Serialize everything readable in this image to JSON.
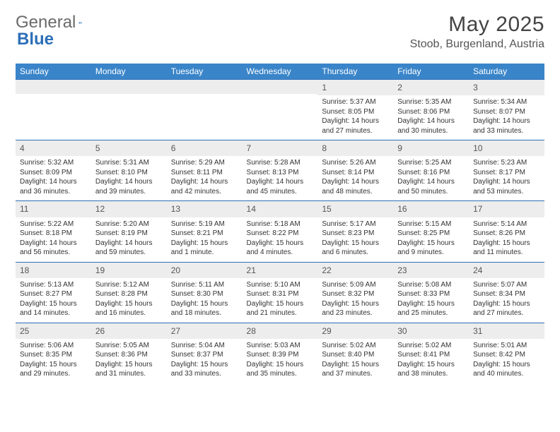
{
  "logo": {
    "text1": "General",
    "text2": "Blue"
  },
  "title": "May 2025",
  "location": "Stoob, Burgenland, Austria",
  "daynames": [
    "Sunday",
    "Monday",
    "Tuesday",
    "Wednesday",
    "Thursday",
    "Friday",
    "Saturday"
  ],
  "colors": {
    "header_bg": "#3a85c9",
    "daynum_bg": "#ededed",
    "border": "#2d6fb8",
    "text": "#333333"
  },
  "first_weekday": 4,
  "days": [
    {
      "n": 1,
      "sunrise": "5:37 AM",
      "sunset": "8:05 PM",
      "daylight": "14 hours and 27 minutes."
    },
    {
      "n": 2,
      "sunrise": "5:35 AM",
      "sunset": "8:06 PM",
      "daylight": "14 hours and 30 minutes."
    },
    {
      "n": 3,
      "sunrise": "5:34 AM",
      "sunset": "8:07 PM",
      "daylight": "14 hours and 33 minutes."
    },
    {
      "n": 4,
      "sunrise": "5:32 AM",
      "sunset": "8:09 PM",
      "daylight": "14 hours and 36 minutes."
    },
    {
      "n": 5,
      "sunrise": "5:31 AM",
      "sunset": "8:10 PM",
      "daylight": "14 hours and 39 minutes."
    },
    {
      "n": 6,
      "sunrise": "5:29 AM",
      "sunset": "8:11 PM",
      "daylight": "14 hours and 42 minutes."
    },
    {
      "n": 7,
      "sunrise": "5:28 AM",
      "sunset": "8:13 PM",
      "daylight": "14 hours and 45 minutes."
    },
    {
      "n": 8,
      "sunrise": "5:26 AM",
      "sunset": "8:14 PM",
      "daylight": "14 hours and 48 minutes."
    },
    {
      "n": 9,
      "sunrise": "5:25 AM",
      "sunset": "8:16 PM",
      "daylight": "14 hours and 50 minutes."
    },
    {
      "n": 10,
      "sunrise": "5:23 AM",
      "sunset": "8:17 PM",
      "daylight": "14 hours and 53 minutes."
    },
    {
      "n": 11,
      "sunrise": "5:22 AM",
      "sunset": "8:18 PM",
      "daylight": "14 hours and 56 minutes."
    },
    {
      "n": 12,
      "sunrise": "5:20 AM",
      "sunset": "8:19 PM",
      "daylight": "14 hours and 59 minutes."
    },
    {
      "n": 13,
      "sunrise": "5:19 AM",
      "sunset": "8:21 PM",
      "daylight": "15 hours and 1 minute."
    },
    {
      "n": 14,
      "sunrise": "5:18 AM",
      "sunset": "8:22 PM",
      "daylight": "15 hours and 4 minutes."
    },
    {
      "n": 15,
      "sunrise": "5:17 AM",
      "sunset": "8:23 PM",
      "daylight": "15 hours and 6 minutes."
    },
    {
      "n": 16,
      "sunrise": "5:15 AM",
      "sunset": "8:25 PM",
      "daylight": "15 hours and 9 minutes."
    },
    {
      "n": 17,
      "sunrise": "5:14 AM",
      "sunset": "8:26 PM",
      "daylight": "15 hours and 11 minutes."
    },
    {
      "n": 18,
      "sunrise": "5:13 AM",
      "sunset": "8:27 PM",
      "daylight": "15 hours and 14 minutes."
    },
    {
      "n": 19,
      "sunrise": "5:12 AM",
      "sunset": "8:28 PM",
      "daylight": "15 hours and 16 minutes."
    },
    {
      "n": 20,
      "sunrise": "5:11 AM",
      "sunset": "8:30 PM",
      "daylight": "15 hours and 18 minutes."
    },
    {
      "n": 21,
      "sunrise": "5:10 AM",
      "sunset": "8:31 PM",
      "daylight": "15 hours and 21 minutes."
    },
    {
      "n": 22,
      "sunrise": "5:09 AM",
      "sunset": "8:32 PM",
      "daylight": "15 hours and 23 minutes."
    },
    {
      "n": 23,
      "sunrise": "5:08 AM",
      "sunset": "8:33 PM",
      "daylight": "15 hours and 25 minutes."
    },
    {
      "n": 24,
      "sunrise": "5:07 AM",
      "sunset": "8:34 PM",
      "daylight": "15 hours and 27 minutes."
    },
    {
      "n": 25,
      "sunrise": "5:06 AM",
      "sunset": "8:35 PM",
      "daylight": "15 hours and 29 minutes."
    },
    {
      "n": 26,
      "sunrise": "5:05 AM",
      "sunset": "8:36 PM",
      "daylight": "15 hours and 31 minutes."
    },
    {
      "n": 27,
      "sunrise": "5:04 AM",
      "sunset": "8:37 PM",
      "daylight": "15 hours and 33 minutes."
    },
    {
      "n": 28,
      "sunrise": "5:03 AM",
      "sunset": "8:39 PM",
      "daylight": "15 hours and 35 minutes."
    },
    {
      "n": 29,
      "sunrise": "5:02 AM",
      "sunset": "8:40 PM",
      "daylight": "15 hours and 37 minutes."
    },
    {
      "n": 30,
      "sunrise": "5:02 AM",
      "sunset": "8:41 PM",
      "daylight": "15 hours and 38 minutes."
    },
    {
      "n": 31,
      "sunrise": "5:01 AM",
      "sunset": "8:42 PM",
      "daylight": "15 hours and 40 minutes."
    }
  ],
  "labels": {
    "sunrise": "Sunrise:",
    "sunset": "Sunset:",
    "daylight": "Daylight:"
  }
}
